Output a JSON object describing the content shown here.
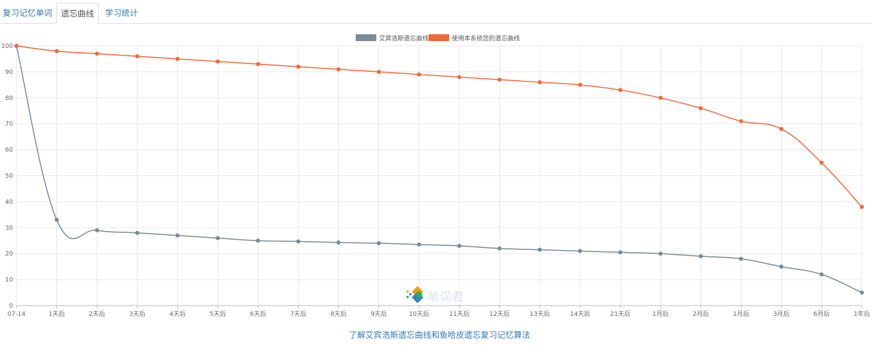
{
  "tabs": [
    {
      "label": "复习记忆单词",
      "active": false
    },
    {
      "label": "遗忘曲线",
      "active": true
    },
    {
      "label": "学习统计",
      "active": false
    }
  ],
  "chart_data": {
    "type": "line",
    "categories": [
      "07-14",
      "1天后",
      "2天后",
      "3天后",
      "4天后",
      "5天后",
      "6天后",
      "7天后",
      "8天后",
      "9天后",
      "10天后",
      "11天后",
      "12天后",
      "13天后",
      "14天后",
      "21天后",
      "1月后",
      "2月后",
      "1月后",
      "3月后",
      "6月后",
      "1年后"
    ],
    "series": [
      {
        "name": "艾宾浩斯遗忘曲线",
        "color": "#7a8b98",
        "values": [
          100,
          33,
          29,
          28,
          27,
          26,
          25,
          24.7,
          24.3,
          24,
          23.5,
          23,
          22,
          21.5,
          21,
          20.5,
          20,
          19,
          18,
          15,
          12,
          5
        ]
      },
      {
        "name": "使用本系统您的遗忘曲线",
        "color": "#f0693a",
        "values": [
          100,
          98,
          97,
          96,
          95,
          94,
          93,
          92,
          91,
          90,
          89,
          88,
          87,
          86,
          85,
          83,
          80,
          76,
          71,
          68,
          55,
          38
        ]
      }
    ],
    "ylim": [
      0,
      100
    ],
    "yticks": [
      0,
      10,
      20,
      30,
      40,
      50,
      60,
      70,
      80,
      90,
      100
    ],
    "legend": "top-center",
    "grid": true
  },
  "watermark": {
    "text": "单词君"
  },
  "footer_link": "了解艾宾浩斯遗忘曲线和鱼哈皮遗忘复习记忆算法"
}
